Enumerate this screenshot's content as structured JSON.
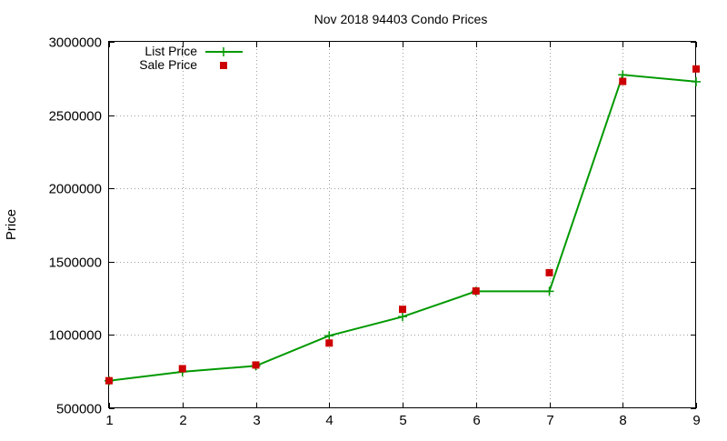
{
  "chart_data": {
    "type": "line",
    "title": "Nov 2018 94403 Condo Prices",
    "xlabel": "",
    "ylabel": "Price",
    "x": [
      1,
      2,
      3,
      4,
      5,
      6,
      7,
      8,
      9
    ],
    "xlim": [
      1,
      9
    ],
    "ylim": [
      500000,
      3000000
    ],
    "x_ticks": [
      "1",
      "2",
      "3",
      "4",
      "5",
      "6",
      "7",
      "8",
      "9"
    ],
    "y_ticks": [
      "500000",
      "1000000",
      "1500000",
      "2000000",
      "2500000",
      "3000000"
    ],
    "grid": true,
    "legend_position": "top-left",
    "series": [
      {
        "name": "List Price",
        "style": "line-with-plus-markers",
        "color": "#009900",
        "values": [
          688000,
          749000,
          789000,
          995000,
          1125000,
          1298000,
          1298000,
          2775000,
          2728000
        ]
      },
      {
        "name": "Sale Price",
        "style": "square-markers",
        "color": "#cc0000",
        "values": [
          688000,
          770000,
          795000,
          945000,
          1175000,
          1300000,
          1425000,
          2730000,
          2815000
        ]
      }
    ]
  }
}
